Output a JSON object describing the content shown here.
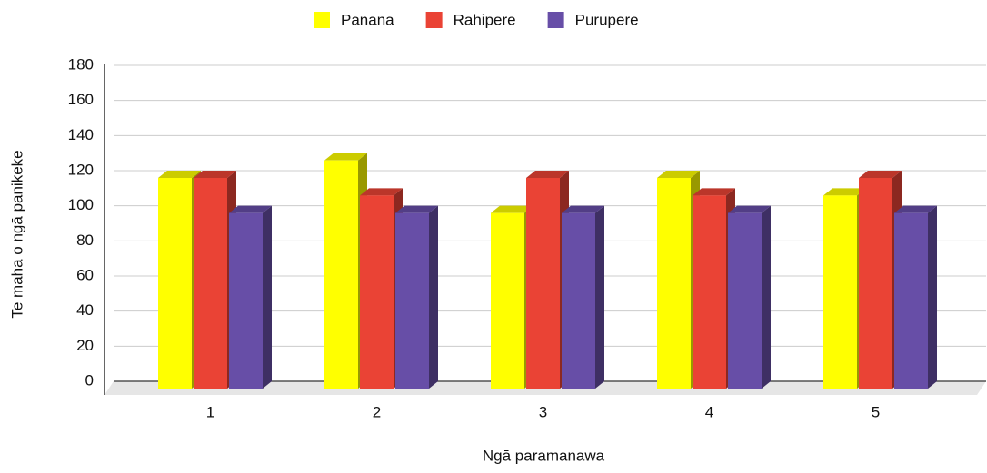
{
  "chart_data": {
    "type": "bar3d",
    "categories": [
      "1",
      "2",
      "3",
      "4",
      "5"
    ],
    "series": [
      {
        "name": "Panana",
        "color": "#ffff00",
        "values": [
          120,
          130,
          100,
          120,
          110
        ]
      },
      {
        "name": "Rāhipere",
        "color": "#ea4335",
        "values": [
          120,
          110,
          120,
          110,
          120
        ]
      },
      {
        "name": "Purūpere",
        "color": "#674ea7",
        "values": [
          100,
          100,
          100,
          100,
          100
        ]
      }
    ],
    "x_label": "Ngā paramanawa",
    "y_label": "Te maha o ngā panikeke",
    "ylim": [
      0,
      180
    ],
    "yticks": [
      0,
      20,
      40,
      60,
      80,
      100,
      120,
      140,
      160,
      180
    ],
    "grid": true,
    "legend": "top"
  }
}
